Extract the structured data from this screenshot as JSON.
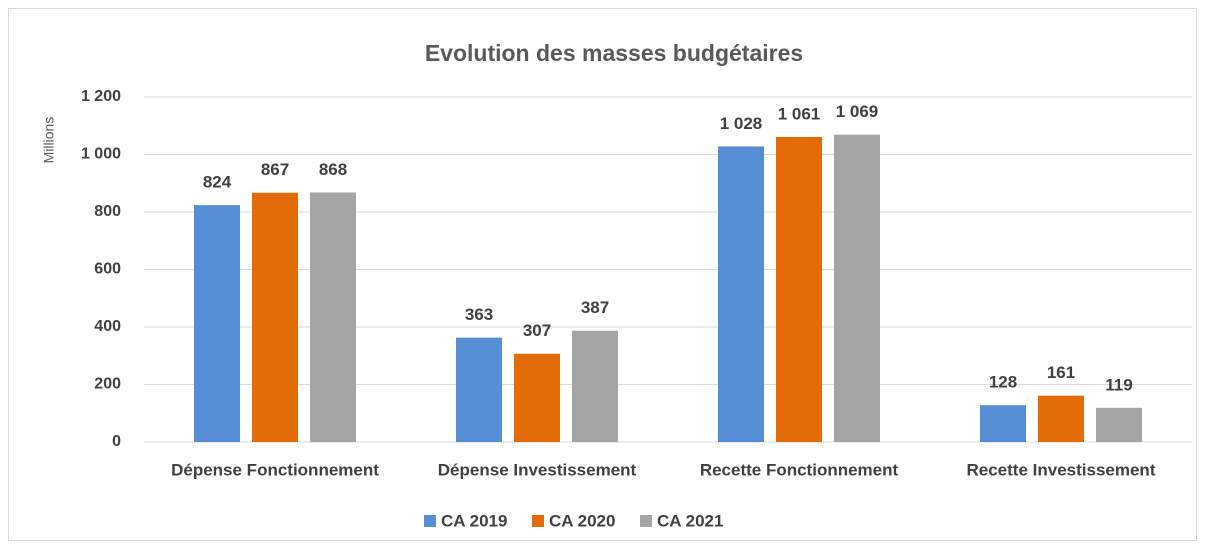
{
  "chart_data": {
    "type": "bar",
    "title": "Evolution des masses budgétaires",
    "y_label": "Millions",
    "categories": [
      "Dépense Fonctionnement",
      "Dépense Investissement",
      "Recette Fonctionnement",
      "Recette Investissement"
    ],
    "series": [
      {
        "name": "CA 2019",
        "color": "#558ed5",
        "values": [
          824,
          363,
          1028,
          128
        ],
        "value_labels": [
          "824",
          "363",
          "1 028",
          "128"
        ]
      },
      {
        "name": "CA 2020",
        "color": "#e36c09",
        "values": [
          867,
          307,
          1061,
          161
        ],
        "value_labels": [
          "867",
          "307",
          "1 061",
          "161"
        ]
      },
      {
        "name": "CA 2021",
        "color": "#a5a5a5",
        "values": [
          868,
          387,
          1069,
          119
        ],
        "value_labels": [
          "868",
          "387",
          "1 069",
          "119"
        ]
      }
    ],
    "ylim": [
      0,
      1200
    ],
    "yticks": [
      0,
      200,
      400,
      600,
      800,
      {
        "value": 1000,
        "label": "1 000"
      },
      {
        "value": 1200,
        "label": "1 200"
      }
    ],
    "grid": true,
    "legend": "bottom"
  }
}
